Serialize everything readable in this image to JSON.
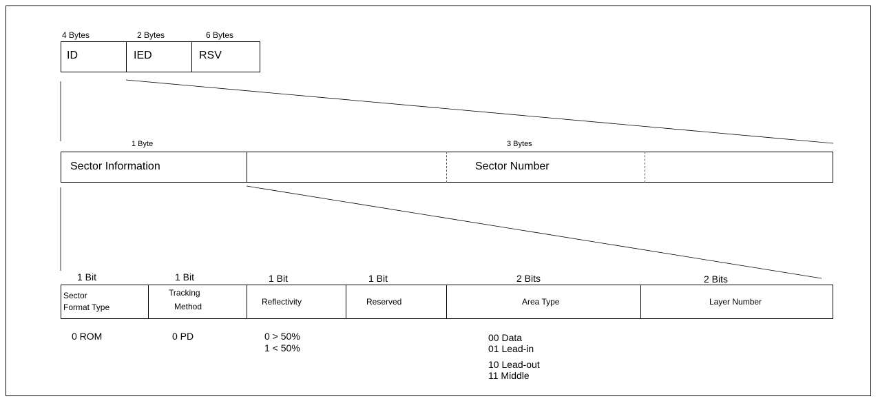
{
  "level1": {
    "sizes": [
      "4 Bytes",
      "2 Bytes",
      "6 Bytes"
    ],
    "fields": [
      "ID",
      "IED",
      "RSV"
    ]
  },
  "level2": {
    "sizes": [
      "1 Byte",
      "3 Bytes"
    ],
    "fields": [
      "Sector Information",
      "Sector Number"
    ]
  },
  "level3": {
    "sizes": [
      "1 Bit",
      "1 Bit",
      "1 Bit",
      "1 Bit",
      "2 Bits",
      "2 Bits"
    ],
    "fields": [
      [
        "Sector",
        "Format Type"
      ],
      [
        "Tracking",
        "Method"
      ],
      [
        "Reflectivity"
      ],
      [
        "Reserved"
      ],
      [
        "Area Type"
      ],
      [
        "Layer Number"
      ]
    ],
    "values": {
      "sector_format_type": [
        "0 ROM"
      ],
      "tracking_method": [
        "0 PD"
      ],
      "reflectivity": [
        "0 > 50%",
        "1 < 50%"
      ],
      "area_type": [
        "00 Data",
        "01 Lead-in",
        "10 Lead-out",
        "11 Middle"
      ]
    }
  }
}
